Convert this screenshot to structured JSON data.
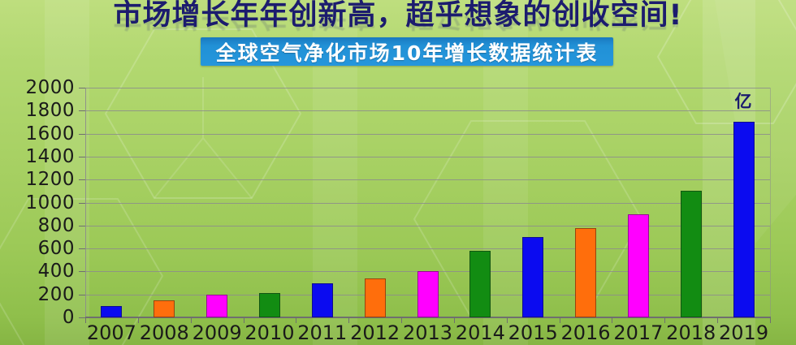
{
  "title": "市场增长年年创新高，超乎想象的创收空间!",
  "banner": "全球空气净化市场10年增长数据统计表",
  "colors": {
    "title_text": "#1c1c6e",
    "banner_bg": "#2191d6",
    "banner_text": "#ffffff",
    "axis_text": "#1a1a1a",
    "gridline": "#8c8c8c"
  },
  "chart_data": {
    "type": "bar",
    "title": "全球空气净化市场10年增长数据统计表",
    "categories": [
      "2007",
      "2008",
      "2009",
      "2010",
      "2011",
      "2012",
      "2013",
      "2014",
      "2015",
      "2016",
      "2017",
      "2018",
      "2019"
    ],
    "values": [
      100,
      150,
      200,
      210,
      300,
      340,
      400,
      580,
      700,
      780,
      900,
      1100,
      1700
    ],
    "bar_colors_cycle": [
      "#0b0bf0",
      "#ff6e0c",
      "#ff00ff",
      "#128c12"
    ],
    "unit": "亿",
    "xlabel": "",
    "ylabel": "",
    "ylim": [
      0,
      2000
    ],
    "yticks": [
      0,
      200,
      400,
      600,
      800,
      1000,
      1200,
      1400,
      1600,
      1800,
      2000
    ],
    "grid": true,
    "legend": false
  }
}
